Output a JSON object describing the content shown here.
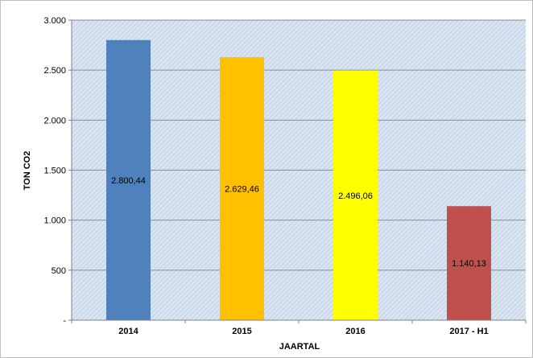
{
  "chart_data": {
    "type": "bar",
    "categories": [
      "2014",
      "2015",
      "2016",
      "2017 - H1"
    ],
    "values": [
      2800.44,
      2629.46,
      2496.06,
      1140.13
    ],
    "data_labels": [
      "2.800,44",
      "2.629,46",
      "2.496,06",
      "1.140,13"
    ],
    "bar_colors": [
      "#4f81bd",
      "#ffc000",
      "#ffff00",
      "#c0504d"
    ],
    "xlabel": "JAARTAL",
    "ylabel": "TON CO2",
    "ylim": [
      0,
      3000
    ],
    "yticks": [
      0,
      500,
      1000,
      1500,
      2000,
      2500,
      3000
    ],
    "ytick_labels": [
      "-",
      "500",
      "1.000",
      "1.500",
      "2.000",
      "2.500",
      "3.000"
    ],
    "grid": true,
    "legend": "none",
    "plot_background": "#dbe5f1"
  }
}
